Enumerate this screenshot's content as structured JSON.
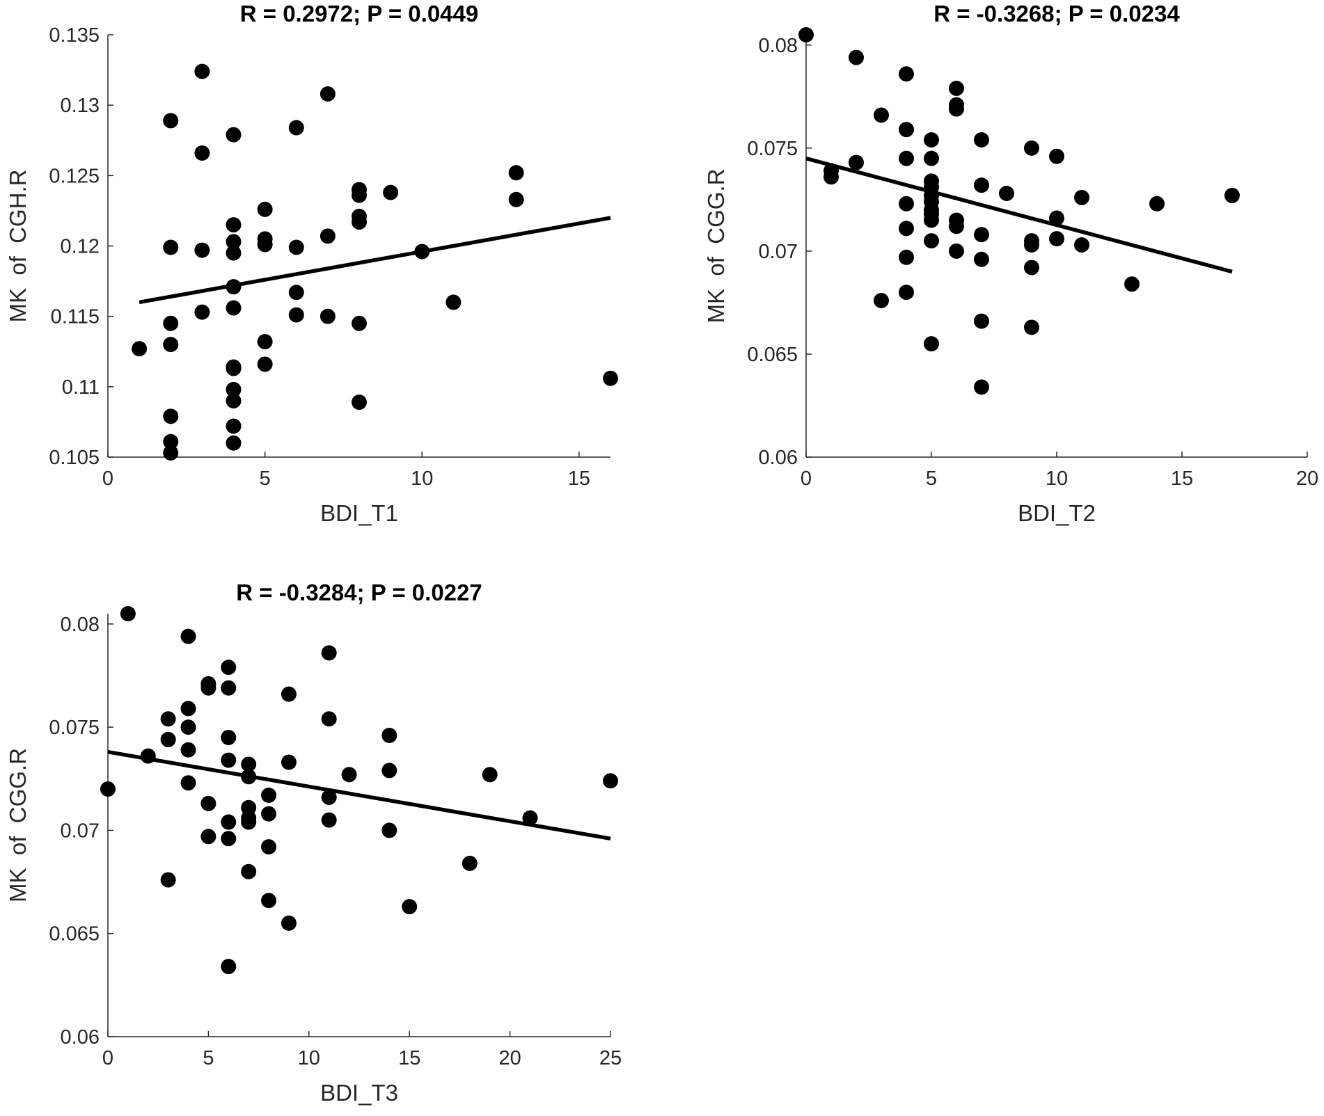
{
  "chart_data": [
    {
      "type": "scatter",
      "title": "R = 0.2972; P = 0.0449",
      "xlabel": "BDI_T1",
      "ylabel": "MK  of  CGH.R",
      "xlim": [
        0,
        16
      ],
      "ylim": [
        0.105,
        0.135
      ],
      "xticks": [
        "0",
        "5",
        "10",
        "15"
      ],
      "xtick_values": [
        0,
        5,
        10,
        15
      ],
      "yticks": [
        "0.105",
        "0.11",
        "0.115",
        "0.12",
        "0.125",
        "0.13",
        "0.135"
      ],
      "ytick_values": [
        0.105,
        0.11,
        0.115,
        0.12,
        0.125,
        0.13,
        0.135
      ],
      "grid": false,
      "fit_line": {
        "x": [
          1,
          16
        ],
        "y": [
          0.116,
          0.122
        ]
      },
      "points": {
        "x": [
          1,
          2,
          2,
          2,
          2,
          2,
          2,
          2,
          3,
          3,
          3,
          3,
          4,
          4,
          4,
          4,
          4,
          4,
          4,
          4,
          4,
          4,
          4,
          4,
          5,
          5,
          5,
          5,
          5,
          6,
          6,
          6,
          6,
          7,
          7,
          7,
          8,
          8,
          8,
          8,
          8,
          8,
          9,
          10,
          11,
          13,
          13,
          16
        ],
        "y": [
          0.1127,
          0.1289,
          0.1199,
          0.1145,
          0.113,
          0.1079,
          0.1061,
          0.1053,
          0.1324,
          0.1266,
          0.1197,
          0.1153,
          0.1279,
          0.1215,
          0.1203,
          0.1195,
          0.1171,
          0.1156,
          0.1114,
          0.1098,
          0.109,
          0.1072,
          0.106,
          0.1113,
          0.1226,
          0.1205,
          0.1201,
          0.1132,
          0.1116,
          0.1284,
          0.1199,
          0.1167,
          0.1151,
          0.1308,
          0.1207,
          0.115,
          0.124,
          0.1236,
          0.1221,
          0.1217,
          0.1145,
          0.1089,
          0.1238,
          0.1196,
          0.116,
          0.1252,
          0.1233,
          0.1106
        ]
      }
    },
    {
      "type": "scatter",
      "title": "R = -0.3268; P = 0.0234",
      "xlabel": "BDI_T2",
      "ylabel": "MK  of  CGG.R",
      "xlim": [
        0,
        20
      ],
      "ylim": [
        0.06,
        0.0805
      ],
      "xticks": [
        "0",
        "5",
        "10",
        "15",
        "20"
      ],
      "xtick_values": [
        0,
        5,
        10,
        15,
        20
      ],
      "yticks": [
        "0.06",
        "0.065",
        "0.07",
        "0.075",
        "0.08"
      ],
      "ytick_values": [
        0.06,
        0.065,
        0.07,
        0.075,
        0.08
      ],
      "grid": false,
      "fit_line": {
        "x": [
          0,
          17
        ],
        "y": [
          0.0745,
          0.069
        ]
      },
      "points": {
        "x": [
          0,
          1,
          1,
          2,
          2,
          3,
          3,
          4,
          4,
          4,
          4,
          4,
          4,
          4,
          5,
          5,
          5,
          5,
          5,
          5,
          5,
          5,
          5,
          5,
          5,
          6,
          6,
          6,
          6,
          6,
          6,
          7,
          7,
          7,
          7,
          7,
          7,
          8,
          9,
          9,
          9,
          9,
          9,
          10,
          10,
          10,
          11,
          11,
          13,
          14,
          17
        ],
        "y": [
          0.0805,
          0.0739,
          0.0736,
          0.0794,
          0.0743,
          0.0766,
          0.0676,
          0.0786,
          0.0759,
          0.0745,
          0.0723,
          0.0711,
          0.0697,
          0.068,
          0.0754,
          0.0745,
          0.0734,
          0.0731,
          0.0727,
          0.0724,
          0.072,
          0.0718,
          0.0715,
          0.0705,
          0.0655,
          0.0779,
          0.0771,
          0.0769,
          0.0715,
          0.0712,
          0.07,
          0.0754,
          0.0732,
          0.0708,
          0.0696,
          0.0666,
          0.0634,
          0.0728,
          0.075,
          0.0705,
          0.0703,
          0.0692,
          0.0663,
          0.0746,
          0.0716,
          0.0706,
          0.0726,
          0.0703,
          0.0684,
          0.0723,
          0.0727
        ]
      }
    },
    {
      "type": "scatter",
      "title": "R = -0.3284; P = 0.0227",
      "xlabel": "BDI_T3",
      "ylabel": "MK  of  CGG.R",
      "xlim": [
        0,
        25
      ],
      "ylim": [
        0.06,
        0.0805
      ],
      "xticks": [
        "0",
        "5",
        "10",
        "15",
        "20",
        "25"
      ],
      "xtick_values": [
        0,
        5,
        10,
        15,
        20,
        25
      ],
      "yticks": [
        "0.06",
        "0.065",
        "0.07",
        "0.075",
        "0.08"
      ],
      "ytick_values": [
        0.06,
        0.065,
        0.07,
        0.075,
        0.08
      ],
      "grid": false,
      "fit_line": {
        "x": [
          0,
          25
        ],
        "y": [
          0.0738,
          0.0696
        ]
      },
      "points": {
        "x": [
          0,
          1,
          2,
          3,
          3,
          3,
          4,
          4,
          4,
          4,
          4,
          5,
          5,
          5,
          5,
          6,
          6,
          6,
          6,
          6,
          6,
          6,
          7,
          7,
          7,
          7,
          7,
          7,
          8,
          8,
          8,
          8,
          9,
          9,
          9,
          11,
          11,
          11,
          11,
          12,
          14,
          14,
          14,
          15,
          18,
          19,
          21,
          25
        ],
        "y": [
          0.072,
          0.0805,
          0.0736,
          0.0754,
          0.0744,
          0.0676,
          0.0794,
          0.0759,
          0.075,
          0.0739,
          0.0723,
          0.0771,
          0.0769,
          0.0713,
          0.0697,
          0.0779,
          0.0769,
          0.0745,
          0.0734,
          0.0704,
          0.0696,
          0.0634,
          0.0732,
          0.0726,
          0.0711,
          0.0706,
          0.0704,
          0.068,
          0.0717,
          0.0708,
          0.0692,
          0.0666,
          0.0766,
          0.0733,
          0.0655,
          0.0786,
          0.0754,
          0.0716,
          0.0705,
          0.0727,
          0.0746,
          0.0729,
          0.07,
          0.0663,
          0.0684,
          0.0727,
          0.0706,
          0.0724
        ]
      }
    }
  ]
}
